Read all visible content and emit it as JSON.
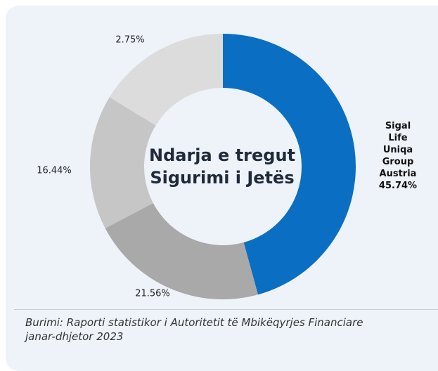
{
  "chart_data": {
    "type": "donut",
    "title": "Ndarja e tregut\nSigurimi i Jetës",
    "categories": [
      "Sigal Life\nUniqa Group\nAustria",
      null,
      null,
      null
    ],
    "values": [
      45.74,
      21.56,
      16.44,
      2.75
    ],
    "value_labels": [
      "45.74%",
      "21.56%",
      "16.44%",
      "2.75%"
    ],
    "colors": [
      "#0a6fc2",
      "#a9a9a9",
      "#c6c6c6",
      "#dcdcdc"
    ],
    "note": "Burimi: Raporti statistikor i Autoritetit të Mbikëqyrjes Financiare\njanar-dhjetor 2023"
  }
}
